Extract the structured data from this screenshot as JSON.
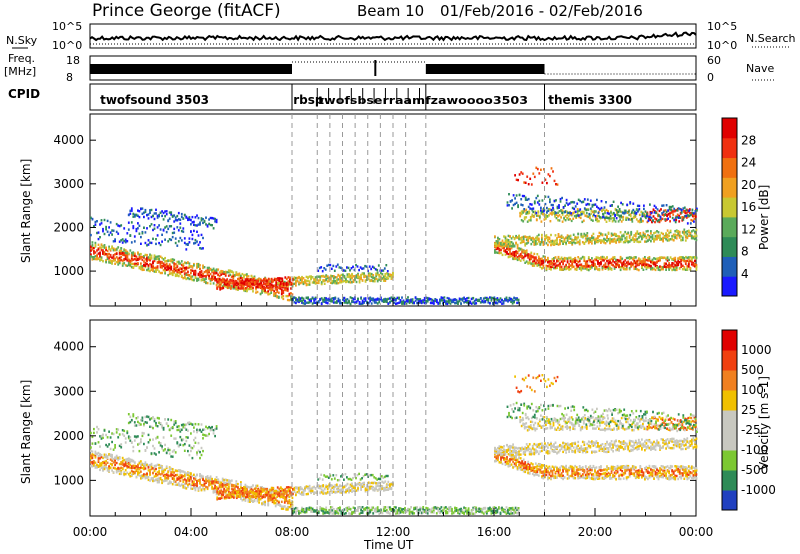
{
  "header": {
    "station": "Prince George (fitACF)",
    "beam": "Beam 10",
    "date_range": "01/Feb/2016 - 02/Feb/2016"
  },
  "panels": {
    "nsky_label": "N.Sky",
    "nsearch_label": "N.Search",
    "nsky_ticks": [
      "10^5",
      "10^0"
    ],
    "freq_label_line1": "Freq.",
    "freq_label_line2": "[MHz]",
    "freq_ticks": [
      "18",
      "8"
    ],
    "nave_label": "Nave",
    "nave_ticks": [
      "60",
      "0"
    ],
    "cpid_label": "CPID",
    "cpid_entries": [
      {
        "name": "twofsound 3503",
        "t": 0.4
      },
      {
        "name": "rbsp",
        "t": 8.05
      },
      {
        "name": "themis 3300",
        "t": 18.15
      }
    ],
    "cpid_overlap_text": "twofsbserraamfzawoooo3503"
  },
  "chart_data": [
    {
      "type": "heatmap",
      "name": "power",
      "ylabel": "Slant Range [km]",
      "ylim": [
        200,
        4600
      ],
      "yticks": [
        1000,
        2000,
        3000,
        4000
      ],
      "xlim": [
        0,
        24
      ],
      "colorbar": {
        "label": "Power [dB]",
        "ticks": [
          "28",
          "24",
          "20",
          "16",
          "12",
          "8",
          "4"
        ],
        "colors": [
          "#1a1aff",
          "#1f5fb8",
          "#2e8b57",
          "#5aaa5a",
          "#c8c832",
          "#f0a020",
          "#f07010",
          "#f03010",
          "#e00000"
        ]
      }
    },
    {
      "type": "heatmap",
      "name": "velocity",
      "ylabel": "Slant Range [km]",
      "ylim": [
        200,
        4600
      ],
      "yticks": [
        1000,
        2000,
        3000,
        4000
      ],
      "xlim": [
        0,
        24
      ],
      "xlabel": "Time UT",
      "xticks": [
        "00:00",
        "04:00",
        "08:00",
        "12:00",
        "16:00",
        "20:00",
        "00:00"
      ],
      "colorbar": {
        "label": "Velocity [m s-1]",
        "ticks": [
          "1000",
          "500",
          "100",
          "25",
          "-25",
          "-100",
          "-500",
          "-1000"
        ],
        "colors": [
          "#2040c0",
          "#2e8b57",
          "#7cc832",
          "#c8c8c0",
          "#c8c8c0",
          "#f0c000",
          "#f08020",
          "#f04010",
          "#e00000"
        ]
      }
    }
  ],
  "colors": {
    "ground": "#c8c8c0",
    "dashed": "#999999"
  }
}
